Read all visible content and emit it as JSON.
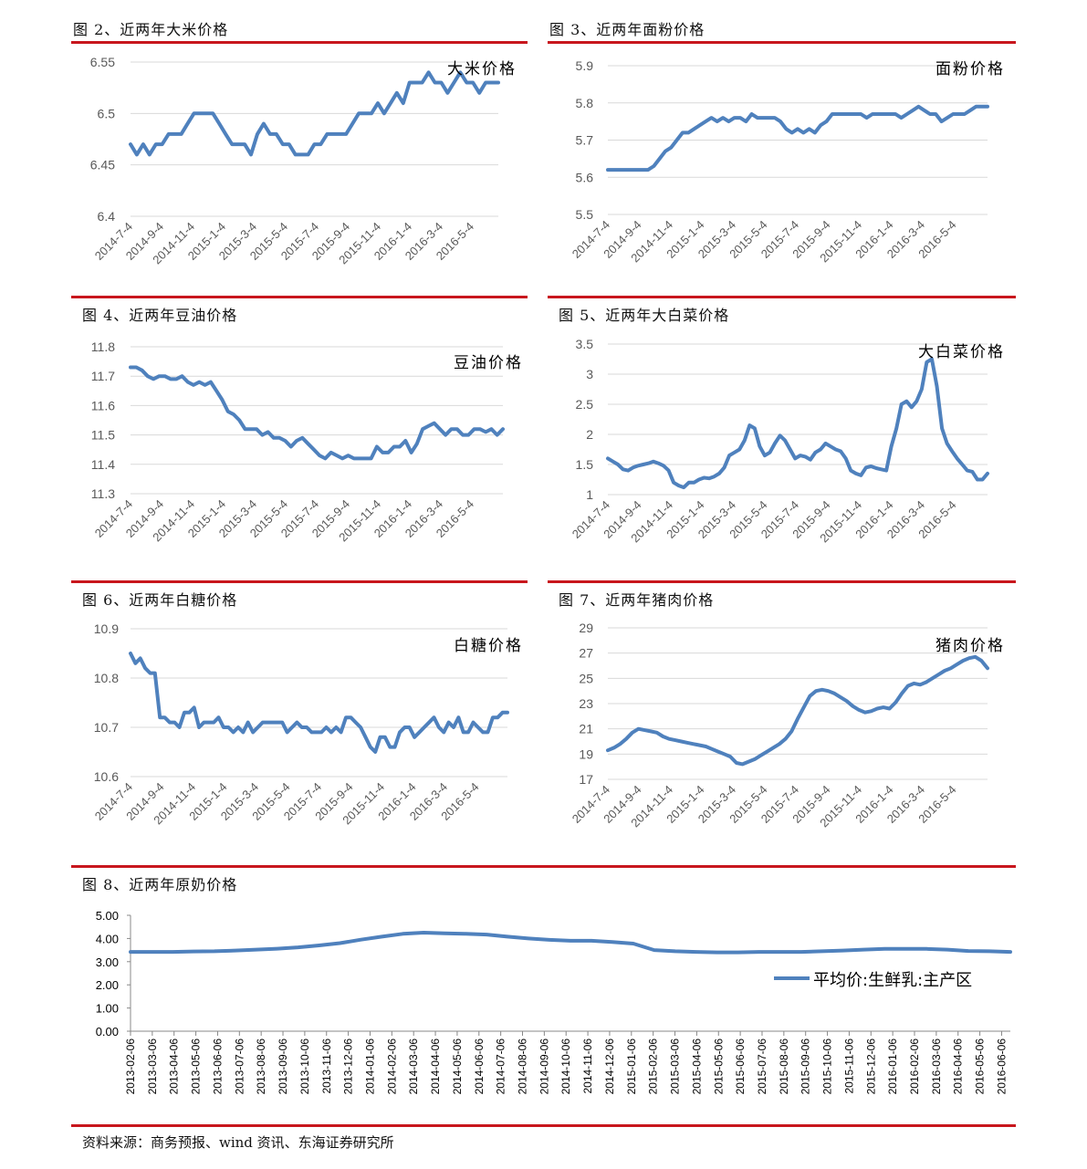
{
  "colors": {
    "line": "#4f81bd",
    "rule": "#c8161d",
    "grid": "#d9d9d9",
    "axis_text": "#595959"
  },
  "source": "资料来源：商务预报、wind 资讯、东海证券研究所",
  "chart_data": [
    {
      "id": "rice",
      "type": "line",
      "title": "图 2、近两年大米价格",
      "legend": "大米价格",
      "ylim": [
        6.4,
        6.55
      ],
      "yticks": [
        6.4,
        6.45,
        6.5,
        6.55
      ],
      "ytick_labels": [
        "6.4",
        "6.45",
        "6.5",
        "6.55"
      ],
      "xlabels": [
        "2014-7-4",
        "2014-9-4",
        "2014-11-4",
        "2015-1-4",
        "2015-3-4",
        "2015-5-4",
        "2015-7-4",
        "2015-9-4",
        "2015-11-4",
        "2016-1-4",
        "2016-3-4",
        "2016-5-4"
      ],
      "values": [
        6.47,
        6.46,
        6.47,
        6.46,
        6.47,
        6.47,
        6.48,
        6.48,
        6.48,
        6.49,
        6.5,
        6.5,
        6.5,
        6.5,
        6.49,
        6.48,
        6.47,
        6.47,
        6.47,
        6.46,
        6.48,
        6.49,
        6.48,
        6.48,
        6.47,
        6.47,
        6.46,
        6.46,
        6.46,
        6.47,
        6.47,
        6.48,
        6.48,
        6.48,
        6.48,
        6.49,
        6.5,
        6.5,
        6.5,
        6.51,
        6.5,
        6.51,
        6.52,
        6.51,
        6.53,
        6.53,
        6.53,
        6.54,
        6.53,
        6.53,
        6.52,
        6.53,
        6.54,
        6.53,
        6.53,
        6.52,
        6.53,
        6.53,
        6.53
      ]
    },
    {
      "id": "flour",
      "type": "line",
      "title": "图 3、近两年面粉价格",
      "legend": "面粉价格",
      "ylim": [
        5.5,
        5.9
      ],
      "yticks": [
        5.5,
        5.6,
        5.7,
        5.8,
        5.9
      ],
      "ytick_labels": [
        "5.5",
        "5.6",
        "5.7",
        "5.8",
        "5.9"
      ],
      "xlabels": [
        "2014-7-4",
        "2014-9-4",
        "2014-11-4",
        "2015-1-4",
        "2015-3-4",
        "2015-5-4",
        "2015-7-4",
        "2015-9-4",
        "2015-11-4",
        "2016-1-4",
        "2016-3-4",
        "2016-5-4"
      ],
      "values": [
        5.62,
        5.62,
        5.62,
        5.62,
        5.62,
        5.62,
        5.62,
        5.62,
        5.63,
        5.65,
        5.67,
        5.68,
        5.7,
        5.72,
        5.72,
        5.73,
        5.74,
        5.75,
        5.76,
        5.75,
        5.76,
        5.75,
        5.76,
        5.76,
        5.75,
        5.77,
        5.76,
        5.76,
        5.76,
        5.76,
        5.75,
        5.73,
        5.72,
        5.73,
        5.72,
        5.73,
        5.72,
        5.74,
        5.75,
        5.77,
        5.77,
        5.77,
        5.77,
        5.77,
        5.77,
        5.76,
        5.77,
        5.77,
        5.77,
        5.77,
        5.77,
        5.76,
        5.77,
        5.78,
        5.79,
        5.78,
        5.77,
        5.77,
        5.75,
        5.76,
        5.77,
        5.77,
        5.77,
        5.78,
        5.79,
        5.79,
        5.79
      ]
    },
    {
      "id": "soyoil",
      "type": "line",
      "title": "图 4、近两年豆油价格",
      "legend": "豆油价格",
      "ylim": [
        11.3,
        11.8
      ],
      "yticks": [
        11.3,
        11.4,
        11.5,
        11.6,
        11.7,
        11.8
      ],
      "ytick_labels": [
        "11.3",
        "11.4",
        "11.5",
        "11.6",
        "11.7",
        "11.8"
      ],
      "xlabels": [
        "2014-7-4",
        "2014-9-4",
        "2014-11-4",
        "2015-1-4",
        "2015-3-4",
        "2015-5-4",
        "2015-7-4",
        "2015-9-4",
        "2015-11-4",
        "2016-1-4",
        "2016-3-4",
        "2016-5-4"
      ],
      "values": [
        11.73,
        11.73,
        11.72,
        11.7,
        11.69,
        11.7,
        11.7,
        11.69,
        11.69,
        11.7,
        11.68,
        11.67,
        11.68,
        11.67,
        11.68,
        11.65,
        11.62,
        11.58,
        11.57,
        11.55,
        11.52,
        11.52,
        11.52,
        11.5,
        11.51,
        11.49,
        11.49,
        11.48,
        11.46,
        11.48,
        11.49,
        11.47,
        11.45,
        11.43,
        11.42,
        11.44,
        11.43,
        11.42,
        11.43,
        11.42,
        11.42,
        11.42,
        11.42,
        11.46,
        11.44,
        11.44,
        11.46,
        11.46,
        11.48,
        11.44,
        11.47,
        11.52,
        11.53,
        11.54,
        11.52,
        11.5,
        11.52,
        11.52,
        11.5,
        11.5,
        11.52,
        11.52,
        11.51,
        11.52,
        11.5,
        11.52
      ]
    },
    {
      "id": "cabbage",
      "type": "line",
      "title": "图 5、近两年大白菜价格",
      "legend": "大白菜价格",
      "ylim": [
        1,
        3.5
      ],
      "yticks": [
        1,
        1.5,
        2,
        2.5,
        3,
        3.5
      ],
      "ytick_labels": [
        "1",
        "1.5",
        "2",
        "2.5",
        "3",
        "3.5"
      ],
      "xlabels": [
        "2014-7-4",
        "2014-9-4",
        "2014-11-4",
        "2015-1-4",
        "2015-3-4",
        "2015-5-4",
        "2015-7-4",
        "2015-9-4",
        "2015-11-4",
        "2016-1-4",
        "2016-3-4",
        "2016-5-4"
      ],
      "values": [
        1.6,
        1.55,
        1.5,
        1.42,
        1.4,
        1.45,
        1.48,
        1.5,
        1.52,
        1.55,
        1.52,
        1.48,
        1.4,
        1.2,
        1.15,
        1.12,
        1.2,
        1.2,
        1.25,
        1.28,
        1.27,
        1.3,
        1.35,
        1.45,
        1.65,
        1.7,
        1.75,
        1.9,
        2.15,
        2.1,
        1.8,
        1.65,
        1.7,
        1.85,
        1.98,
        1.9,
        1.75,
        1.6,
        1.65,
        1.63,
        1.58,
        1.7,
        1.75,
        1.85,
        1.8,
        1.75,
        1.72,
        1.6,
        1.4,
        1.35,
        1.32,
        1.45,
        1.47,
        1.44,
        1.42,
        1.4,
        1.8,
        2.1,
        2.5,
        2.55,
        2.45,
        2.55,
        2.75,
        3.2,
        3.25,
        2.8,
        2.1,
        1.85,
        1.72,
        1.6,
        1.5,
        1.4,
        1.38,
        1.25,
        1.25,
        1.35
      ]
    },
    {
      "id": "sugar",
      "type": "line",
      "title": "图 6、近两年白糖价格",
      "legend": "白糖价格",
      "ylim": [
        10.6,
        10.9
      ],
      "yticks": [
        10.6,
        10.7,
        10.8,
        10.9
      ],
      "ytick_labels": [
        "10.6",
        "10.7",
        "10.8",
        "10.9"
      ],
      "xlabels": [
        "2014-7-4",
        "2014-9-4",
        "2014-11-4",
        "2015-1-4",
        "2015-3-4",
        "2015-5-4",
        "2015-7-4",
        "2015-9-4",
        "2015-11-4",
        "2016-1-4",
        "2016-3-4",
        "2016-5-4"
      ],
      "values": [
        10.85,
        10.83,
        10.84,
        10.82,
        10.81,
        10.81,
        10.72,
        10.72,
        10.71,
        10.71,
        10.7,
        10.73,
        10.73,
        10.74,
        10.7,
        10.71,
        10.71,
        10.71,
        10.72,
        10.7,
        10.7,
        10.69,
        10.7,
        10.69,
        10.71,
        10.69,
        10.7,
        10.71,
        10.71,
        10.71,
        10.71,
        10.71,
        10.69,
        10.7,
        10.71,
        10.7,
        10.7,
        10.69,
        10.69,
        10.69,
        10.7,
        10.69,
        10.7,
        10.69,
        10.72,
        10.72,
        10.71,
        10.7,
        10.68,
        10.66,
        10.65,
        10.68,
        10.68,
        10.66,
        10.66,
        10.69,
        10.7,
        10.7,
        10.68,
        10.69,
        10.7,
        10.71,
        10.72,
        10.7,
        10.69,
        10.71,
        10.7,
        10.72,
        10.69,
        10.69,
        10.71,
        10.7,
        10.69,
        10.69,
        10.72,
        10.72,
        10.73,
        10.73
      ]
    },
    {
      "id": "pork",
      "type": "line",
      "title": "图 7、近两年猪肉价格",
      "legend": "猪肉价格",
      "ylim": [
        17,
        29
      ],
      "yticks": [
        17,
        19,
        21,
        23,
        25,
        27,
        29
      ],
      "ytick_labels": [
        "17",
        "19",
        "21",
        "23",
        "25",
        "27",
        "29"
      ],
      "xlabels": [
        "2014-7-4",
        "2014-9-4",
        "2014-11-4",
        "2015-1-4",
        "2015-3-4",
        "2015-5-4",
        "2015-7-4",
        "2015-9-4",
        "2015-11-4",
        "2016-1-4",
        "2016-3-4",
        "2016-5-4"
      ],
      "values": [
        19.3,
        19.5,
        19.8,
        20.2,
        20.7,
        21,
        20.9,
        20.8,
        20.7,
        20.4,
        20.2,
        20.1,
        20,
        19.9,
        19.8,
        19.7,
        19.6,
        19.4,
        19.2,
        19,
        18.8,
        18.3,
        18.2,
        18.4,
        18.6,
        18.9,
        19.2,
        19.5,
        19.8,
        20.2,
        20.8,
        21.8,
        22.7,
        23.6,
        24,
        24.1,
        24,
        23.8,
        23.5,
        23.2,
        22.8,
        22.5,
        22.3,
        22.4,
        22.6,
        22.7,
        22.6,
        23.1,
        23.8,
        24.4,
        24.6,
        24.5,
        24.7,
        25,
        25.3,
        25.6,
        25.8,
        26.1,
        26.4,
        26.6,
        26.7,
        26.4,
        25.8
      ]
    },
    {
      "id": "milk",
      "type": "line",
      "title": "图 8、近两年原奶价格",
      "legend": "平均价:生鲜乳:主产区",
      "ylim": [
        0,
        5
      ],
      "yticks": [
        0,
        1,
        2,
        3,
        4,
        5
      ],
      "ytick_labels": [
        "0.00",
        "1.00",
        "2.00",
        "3.00",
        "4.00",
        "5.00"
      ],
      "xlabels": [
        "2013-02-06",
        "2013-03-06",
        "2013-04-06",
        "2013-05-06",
        "2013-06-06",
        "2013-07-06",
        "2013-08-06",
        "2013-09-06",
        "2013-10-06",
        "2013-11-06",
        "2013-12-06",
        "2014-01-06",
        "2014-02-06",
        "2014-03-06",
        "2014-04-06",
        "2014-05-06",
        "2014-06-06",
        "2014-07-06",
        "2014-08-06",
        "2014-09-06",
        "2014-10-06",
        "2014-11-06",
        "2014-12-06",
        "2015-01-06",
        "2015-02-06",
        "2015-03-06",
        "2015-04-06",
        "2015-05-06",
        "2015-06-06",
        "2015-07-06",
        "2015-08-06",
        "2015-09-06",
        "2015-10-06",
        "2015-11-06",
        "2015-12-06",
        "2016-01-06",
        "2016-02-06",
        "2016-03-06",
        "2016-04-06",
        "2016-05-06",
        "2016-06-06"
      ],
      "values": [
        3.42,
        3.42,
        3.42,
        3.44,
        3.45,
        3.48,
        3.52,
        3.56,
        3.62,
        3.7,
        3.8,
        3.95,
        4.08,
        4.2,
        4.25,
        4.22,
        4.2,
        4.17,
        4.08,
        4.0,
        3.94,
        3.9,
        3.9,
        3.85,
        3.78,
        3.5,
        3.45,
        3.42,
        3.4,
        3.4,
        3.42,
        3.42,
        3.42,
        3.45,
        3.48,
        3.52,
        3.55,
        3.55,
        3.55,
        3.52,
        3.46,
        3.45,
        3.42
      ]
    }
  ]
}
